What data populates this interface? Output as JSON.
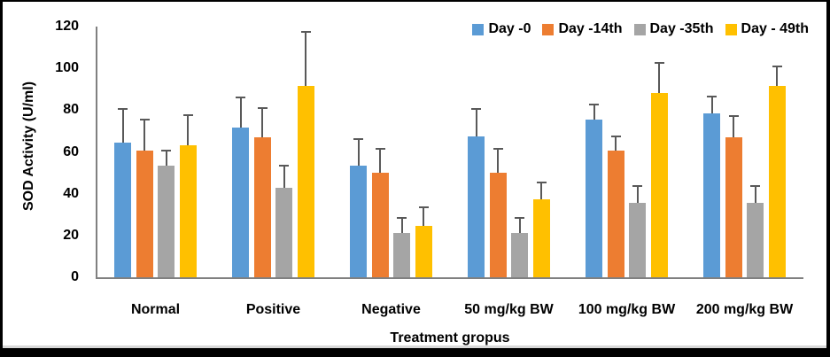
{
  "chart_data": {
    "type": "bar",
    "title": "",
    "xlabel": "Treatment gropus",
    "ylabel": "SOD Activity (U/ml)",
    "ylim": [
      0,
      120
    ],
    "yticks": [
      0,
      20,
      40,
      60,
      80,
      100,
      120
    ],
    "grid": false,
    "legend_position": "top-right",
    "error_bars": "upper-only",
    "categories": [
      "Normal",
      "Positive",
      "Negative",
      "50 mg/kg BW",
      "100 mg/kg BW",
      "200 mg/kg BW"
    ],
    "series": [
      {
        "name": "Day -0",
        "color": "#5B9BD5",
        "values": [
          64.5,
          71.5,
          53.5,
          67.5,
          75.5,
          78.5
        ],
        "error_up": [
          16,
          14.5,
          12.5,
          13,
          7,
          8
        ]
      },
      {
        "name": "Day -14th",
        "color": "#ED7D31",
        "values": [
          60.5,
          67,
          50,
          50,
          60.5,
          67
        ],
        "error_up": [
          15,
          14,
          11.5,
          11.5,
          7,
          10
        ]
      },
      {
        "name": "Day -35th",
        "color": "#A5A5A5",
        "values": [
          53.5,
          43,
          21,
          21,
          35.5,
          35.5
        ],
        "error_up": [
          7,
          10.5,
          7.5,
          7.5,
          8,
          8
        ]
      },
      {
        "name": "Day - 49th",
        "color": "#FFC000",
        "values": [
          63,
          91.5,
          24.5,
          37.5,
          88,
          91.5
        ],
        "error_up": [
          14.5,
          26,
          9,
          8,
          14.5,
          9.5
        ]
      }
    ],
    "colors": {
      "axis": "#808080",
      "error_bar": "#595959",
      "text": "#000000",
      "frame_border": "#000000"
    }
  }
}
